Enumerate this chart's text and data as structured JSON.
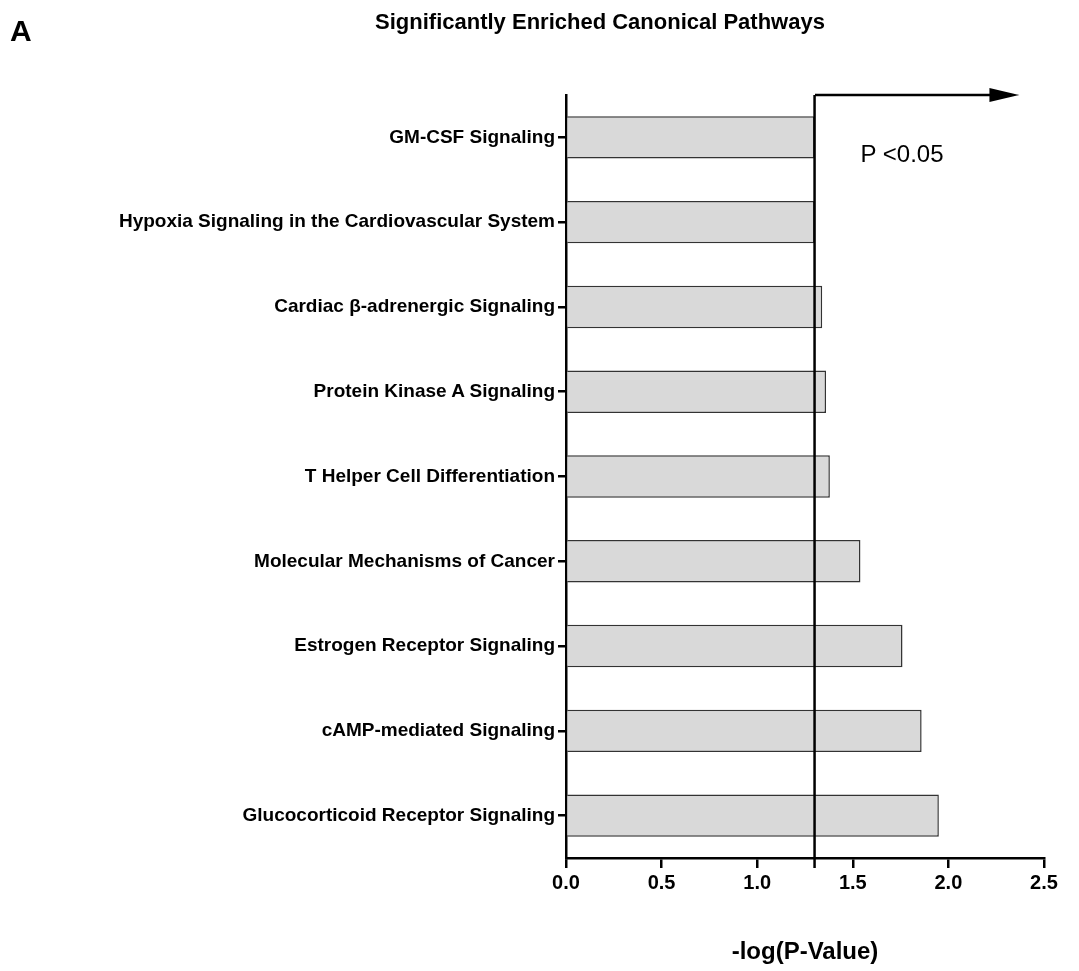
{
  "chart_data": {
    "type": "bar",
    "orientation": "horizontal",
    "title": "Significantly Enriched Canonical Pathways",
    "xlabel": "-log(P-Value)",
    "categories": [
      "GM-CSF Signaling",
      "Hypoxia Signaling in the Cardiovascular System",
      "Cardiac β-adrenergic Signaling",
      "Protein Kinase A Signaling",
      "T Helper Cell Differentiation",
      "Molecular Mechanisms of Cancer",
      "Estrogen Receptor Signaling",
      "cAMP-mediated Signaling",
      "Glucocorticoid Receptor Signaling"
    ],
    "values": [
      1.3,
      1.3,
      1.34,
      1.36,
      1.38,
      1.54,
      1.76,
      1.86,
      1.95
    ],
    "color": "#d9d9d9",
    "xlim": [
      0,
      2.5
    ],
    "xticks": [
      {
        "value": 0,
        "label": "0.0"
      },
      {
        "value": 0.5,
        "label": "0.5"
      },
      {
        "value": 1,
        "label": "1.0"
      },
      {
        "value": 1.5,
        "label": "1.5"
      },
      {
        "value": 2,
        "label": "2.0"
      },
      {
        "value": 2.5,
        "label": "2.5"
      }
    ],
    "ref_lines": [
      {
        "axis": "x",
        "value": 1.3,
        "label": "P <0.05",
        "color": "#000000"
      }
    ],
    "annotations": [
      "A"
    ],
    "grid": false,
    "legend": false
  }
}
